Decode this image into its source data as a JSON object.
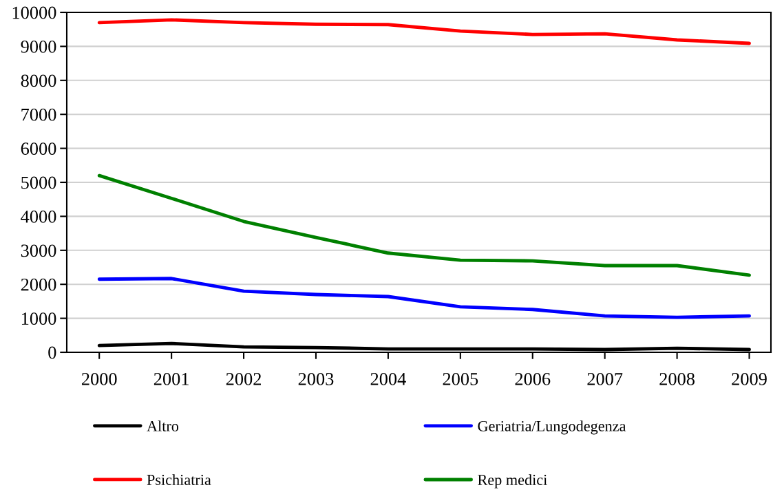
{
  "chart_data": {
    "type": "line",
    "categories": [
      "2000",
      "2001",
      "2002",
      "2003",
      "2004",
      "2005",
      "2006",
      "2007",
      "2008",
      "2009"
    ],
    "series": [
      {
        "name": "Altro",
        "color": "#000000",
        "values": [
          200,
          260,
          160,
          140,
          100,
          100,
          100,
          80,
          120,
          80
        ]
      },
      {
        "name": "Geriatria/Lungodegenza",
        "color": "#0000ff",
        "values": [
          2150,
          2170,
          1800,
          1700,
          1640,
          1340,
          1260,
          1070,
          1030,
          1070
        ]
      },
      {
        "name": "Psichiatria",
        "color": "#ff0000",
        "values": [
          9700,
          9780,
          9700,
          9650,
          9640,
          9450,
          9350,
          9370,
          9190,
          9090
        ]
      },
      {
        "name": "Rep medici",
        "color": "#008000",
        "values": [
          5200,
          4530,
          3850,
          3380,
          2920,
          2710,
          2690,
          2550,
          2550,
          2270
        ]
      }
    ],
    "ylim": [
      0,
      10000
    ],
    "yticks": [
      0,
      1000,
      2000,
      3000,
      4000,
      5000,
      6000,
      7000,
      8000,
      9000,
      10000
    ],
    "grid": "y",
    "legend": "bottom",
    "marker": "none",
    "line_style": "solid"
  }
}
